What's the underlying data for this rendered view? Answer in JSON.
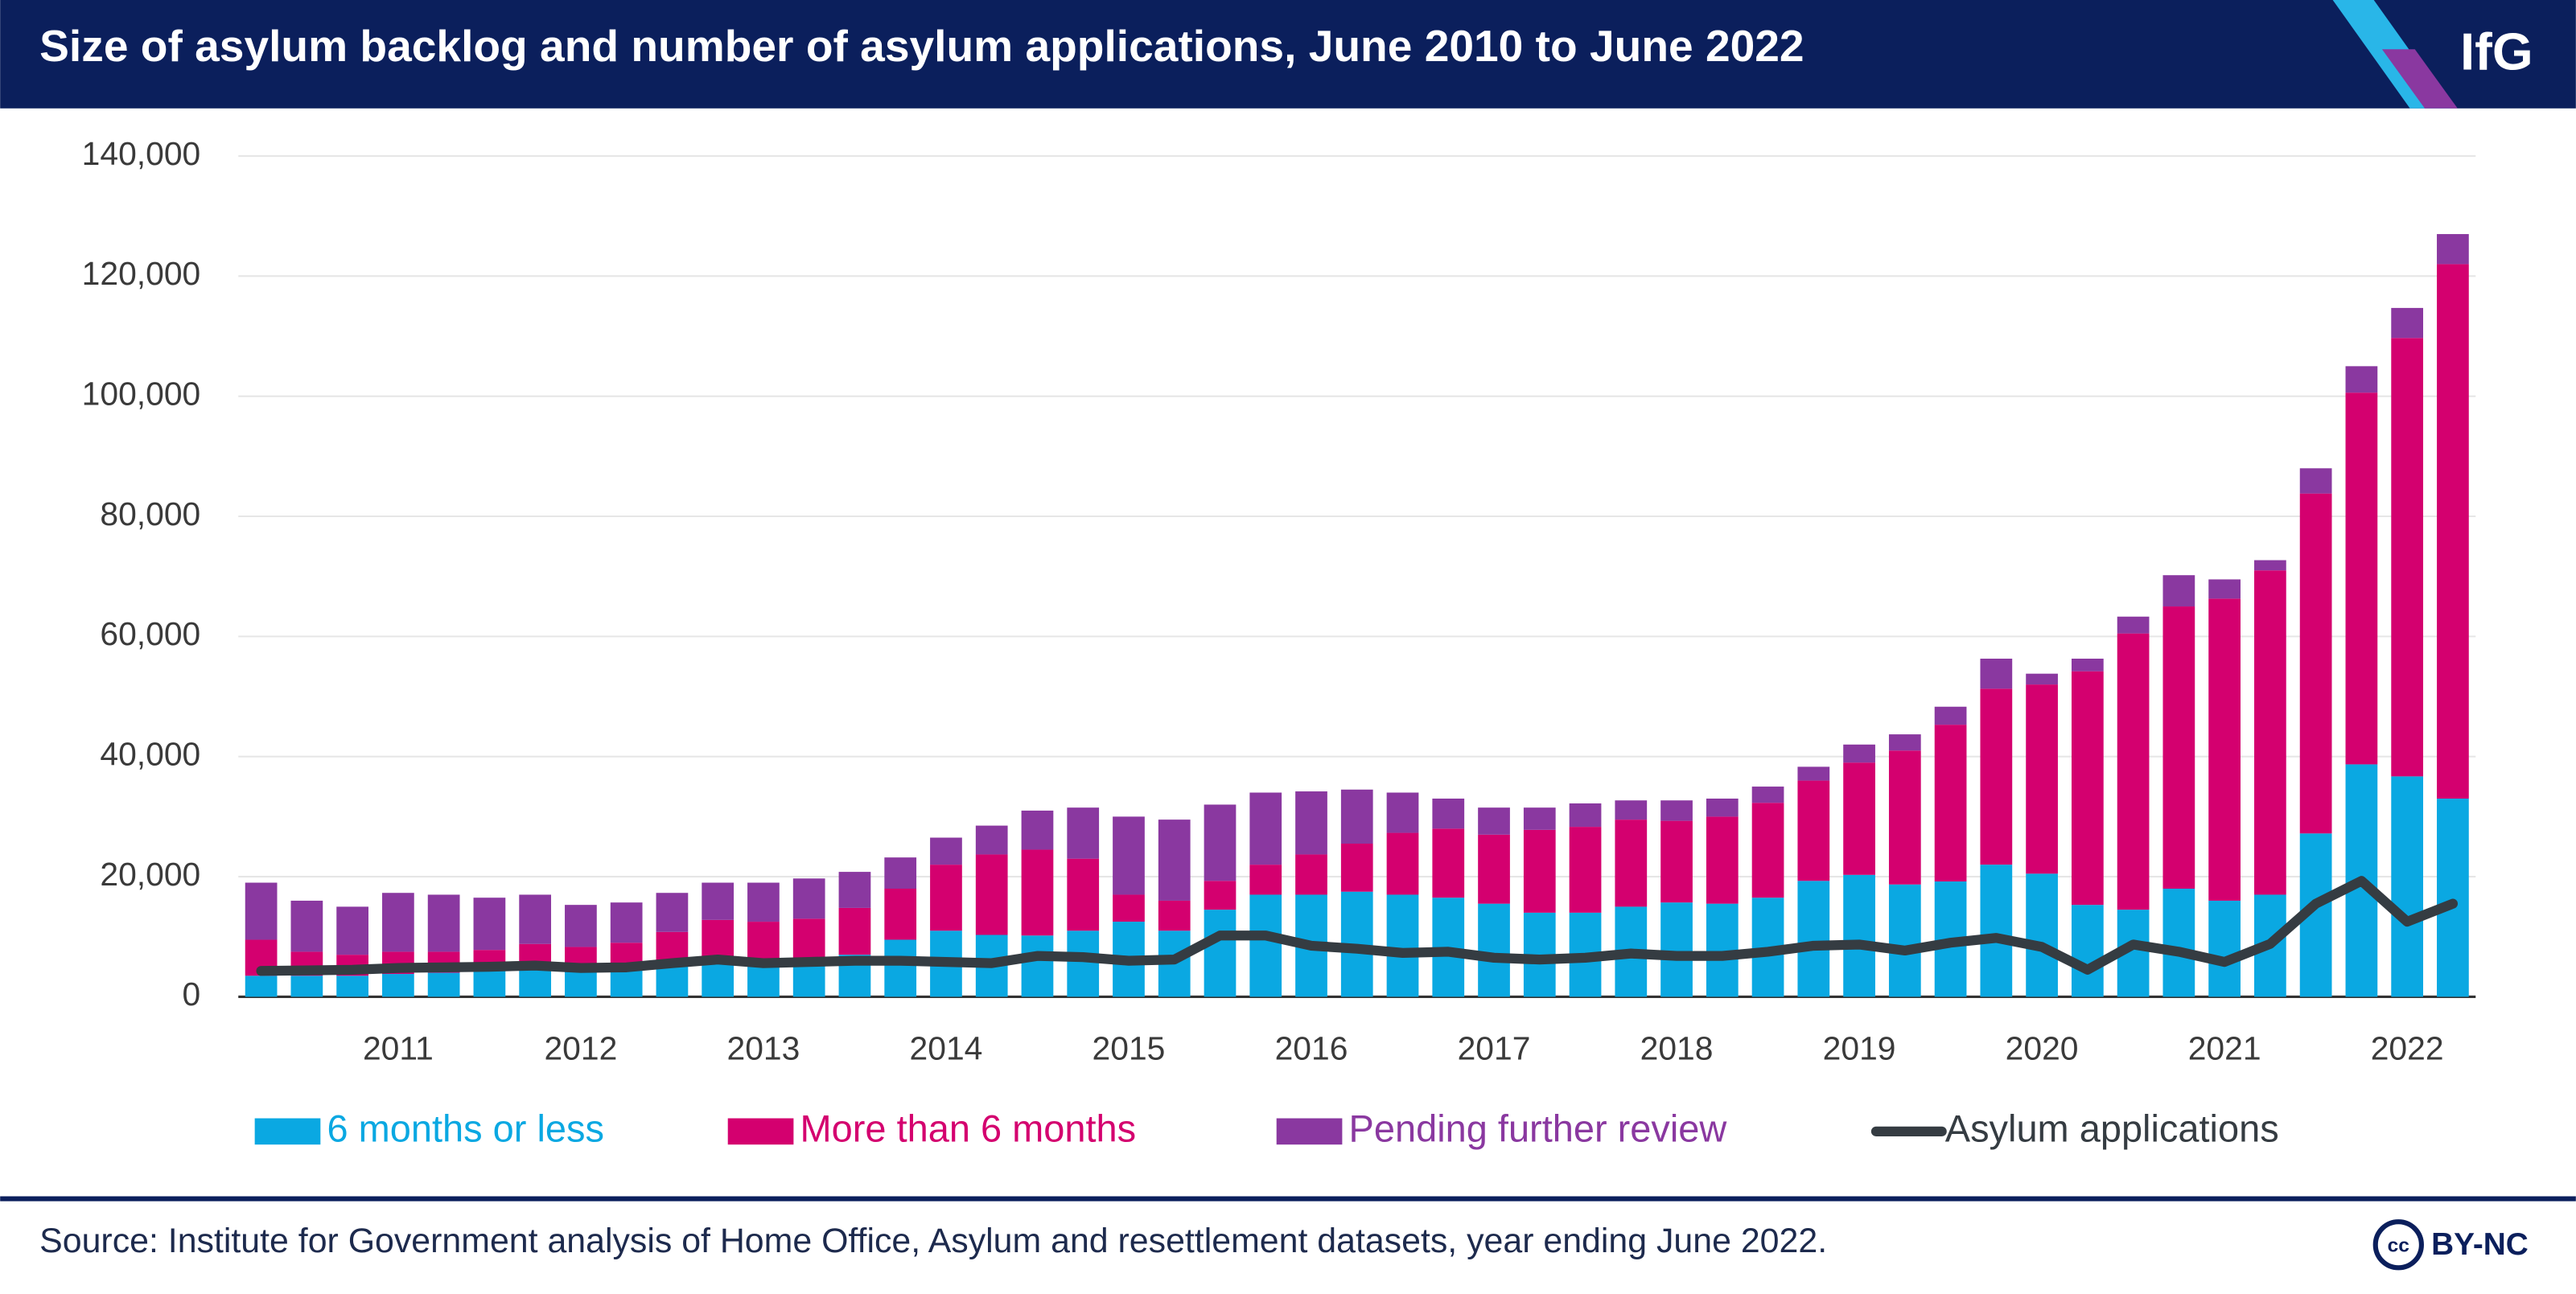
{
  "chart_data": {
    "type": "bar",
    "stacked": true,
    "title": "Size of asylum backlog and number of asylum applications, June 2010 to June 2022",
    "categories": [
      null,
      null,
      null,
      "2011",
      null,
      null,
      null,
      "2012",
      null,
      null,
      null,
      "2013",
      null,
      null,
      null,
      "2014",
      null,
      null,
      null,
      "2015",
      null,
      null,
      null,
      "2016",
      null,
      null,
      null,
      "2017",
      null,
      null,
      null,
      "2018",
      null,
      null,
      null,
      "2019",
      null,
      null,
      null,
      "2020",
      null,
      null,
      null,
      "2021",
      null,
      null,
      null,
      "2022",
      null
    ],
    "series": [
      {
        "name": "6 months or less",
        "color": "#0aa8e2",
        "values": [
          3500,
          3500,
          3500,
          3800,
          4000,
          4300,
          4500,
          4500,
          5000,
          6000,
          6500,
          6000,
          6500,
          7000,
          9500,
          11000,
          10300,
          10200,
          11000,
          12500,
          11000,
          14500,
          17000,
          17000,
          17500,
          17000,
          16500,
          15500,
          14000,
          14000,
          15000,
          15700,
          15500,
          16500,
          19300,
          20300,
          18700,
          19200,
          22000,
          20500,
          15300,
          14500,
          18000,
          16000,
          17000,
          27200,
          38700,
          36700,
          33000
        ]
      },
      {
        "name": "More than 6 months",
        "color": "#d4006f",
        "values": [
          6000,
          4000,
          3500,
          3700,
          3500,
          3500,
          4300,
          3800,
          4000,
          4800,
          6300,
          6500,
          6500,
          7800,
          8500,
          11000,
          13400,
          14300,
          12000,
          4500,
          5000,
          4800,
          5000,
          6700,
          8000,
          10300,
          11500,
          11500,
          13800,
          14300,
          14500,
          13600,
          14500,
          15800,
          16700,
          18700,
          22300,
          26100,
          29300,
          31500,
          38900,
          46000,
          47000,
          50300,
          54000,
          56600,
          61900,
          73000,
          89000
        ]
      },
      {
        "name": "Pending further review",
        "color": "#8a38a0",
        "values": [
          9500,
          8500,
          8000,
          9800,
          9500,
          8700,
          8200,
          7000,
          6700,
          6500,
          6200,
          6500,
          6700,
          6000,
          5200,
          4500,
          4800,
          6500,
          8500,
          13000,
          13500,
          12700,
          12000,
          10500,
          9000,
          6700,
          5000,
          4500,
          3700,
          3900,
          3200,
          3400,
          3000,
          2700,
          2300,
          3000,
          2700,
          3000,
          5000,
          1800,
          2100,
          2800,
          5200,
          3200,
          1700,
          4200,
          4400,
          5000,
          5000
        ]
      },
      {
        "name": "Asylum applications",
        "type": "line",
        "color": "#353c42",
        "values": [
          4300,
          4400,
          4500,
          4800,
          4900,
          5000,
          5200,
          4800,
          4900,
          5600,
          6200,
          5600,
          5800,
          6000,
          6000,
          5800,
          5600,
          6800,
          6600,
          6000,
          6200,
          10200,
          10200,
          8500,
          8000,
          7300,
          7500,
          6500,
          6200,
          6500,
          7200,
          6800,
          6800,
          7500,
          8500,
          8700,
          7700,
          9000,
          9800,
          8300,
          4500,
          8700,
          7500,
          5800,
          8800,
          15500,
          19300,
          12500,
          15500
        ]
      }
    ],
    "ylim": [
      0,
      140000
    ],
    "yticks": [
      0,
      {
        "value": 20000,
        "label": "20,000"
      },
      {
        "value": 40000,
        "label": "40,000"
      },
      {
        "value": 60000,
        "label": "60,000"
      },
      {
        "value": 80000,
        "label": "80,000"
      },
      {
        "value": 100000,
        "label": "100,000"
      },
      {
        "value": 120000,
        "label": "120,000"
      },
      {
        "value": 140000,
        "label": "140,000"
      }
    ],
    "grid": true
  },
  "logo": "IfG",
  "source": "Source: Institute for Government analysis of Home Office, Asylum and resettlement datasets, year ending June 2022.",
  "license": "BY-NC"
}
